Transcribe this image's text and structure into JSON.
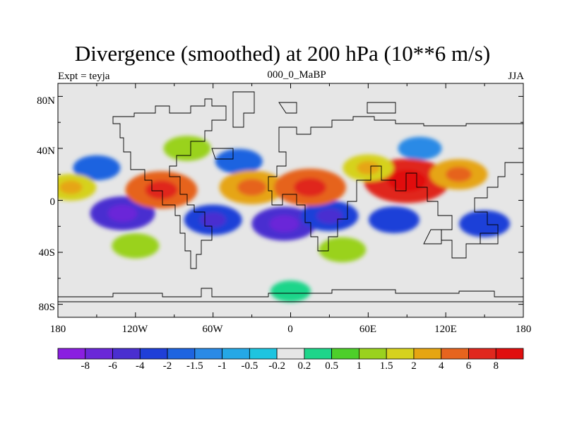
{
  "title": "Divergence (smoothed) at 200 hPa (10**6 m/s)",
  "subtitle_left": "Expt = teyja",
  "subtitle_center": "000_0_MaBP",
  "subtitle_right": "JJA",
  "lat_labels": [
    "80N",
    "40N",
    "0",
    "40S",
    "80S"
  ],
  "lon_labels": [
    "180",
    "120W",
    "60W",
    "0",
    "60E",
    "120E",
    "180"
  ],
  "colorbar": {
    "labels": [
      "-8",
      "-6",
      "-4",
      "-2",
      "-1.5",
      "-1",
      "-0.5",
      "-0.2",
      "0.2",
      "0.5",
      "1",
      "1.5",
      "2",
      "4",
      "6",
      "8"
    ],
    "colors": [
      "#8a1fe0",
      "#6a28d8",
      "#4a2fd0",
      "#1f3fd8",
      "#1e64e0",
      "#2a8ae6",
      "#25a8e6",
      "#1ec4e0",
      "#e6e6e6",
      "#1ed58a",
      "#4dcf2a",
      "#9ad21e",
      "#d6d21e",
      "#e6a512",
      "#e6641e",
      "#e0281e",
      "#e00f0f"
    ]
  },
  "chart_data": {
    "type": "heatmap",
    "title": "Divergence (smoothed) at 200 hPa (10**6 m/s)",
    "experiment": "teyja",
    "period": "000_0_MaBP",
    "season": "JJA",
    "xlim": [
      -180,
      180
    ],
    "ylim": [
      -90,
      90
    ],
    "contour_levels": [
      -8,
      -6,
      -4,
      -2,
      -1.5,
      -1,
      -0.5,
      -0.2,
      0.2,
      0.5,
      1,
      1.5,
      2,
      4,
      6,
      8
    ],
    "features": [
      {
        "lon": -5,
        "lat": -18,
        "value": -4
      },
      {
        "lon": -60,
        "lat": -15,
        "value": -3
      },
      {
        "lon": -130,
        "lat": -10,
        "value": -4
      },
      {
        "lon": 30,
        "lat": -12,
        "value": -3
      },
      {
        "lon": 80,
        "lat": -15,
        "value": -2
      },
      {
        "lon": 150,
        "lat": -18,
        "value": -2
      },
      {
        "lon": -150,
        "lat": 25,
        "value": -1.5
      },
      {
        "lon": -40,
        "lat": 30,
        "value": -1.5
      },
      {
        "lon": 100,
        "lat": 40,
        "value": -1
      },
      {
        "lon": -100,
        "lat": 8,
        "value": 5
      },
      {
        "lon": -30,
        "lat": 10,
        "value": 4
      },
      {
        "lon": 15,
        "lat": 10,
        "value": 5
      },
      {
        "lon": 90,
        "lat": 15,
        "value": 7
      },
      {
        "lon": 130,
        "lat": 20,
        "value": 3
      },
      {
        "lon": 60,
        "lat": 25,
        "value": 2
      },
      {
        "lon": -120,
        "lat": -35,
        "value": 1.5
      },
      {
        "lon": 40,
        "lat": -38,
        "value": 1.5
      },
      {
        "lon": -170,
        "lat": 10,
        "value": 2
      },
      {
        "lon": -80,
        "lat": 40,
        "value": 1.5
      },
      {
        "lon": 0,
        "lat": -70,
        "value": 0.5
      }
    ]
  }
}
